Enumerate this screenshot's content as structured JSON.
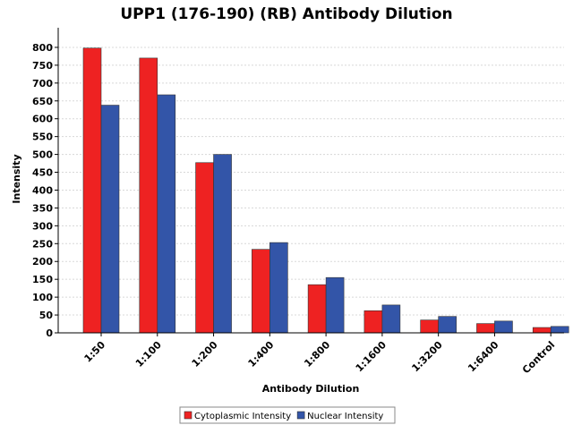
{
  "chart_data": {
    "type": "bar",
    "title": "UPP1 (176-190) (RB) Antibody Dilution",
    "xlabel": "Antibody Dilution",
    "ylabel": "Intensity",
    "categories": [
      "1:50",
      "1:100",
      "1:200",
      "1:400",
      "1:800",
      "1:1600",
      "1:3200",
      "1:6400",
      "Control"
    ],
    "series": [
      {
        "name": "Cytoplasmic Intensity",
        "color": "#ee2222",
        "values": [
          798,
          770,
          477,
          234,
          135,
          62,
          36,
          26,
          15
        ]
      },
      {
        "name": "Nuclear Intensity",
        "color": "#3355a8",
        "values": [
          638,
          667,
          500,
          253,
          155,
          78,
          46,
          33,
          18
        ]
      }
    ],
    "ylim": [
      0,
      850
    ],
    "yticks": [
      0,
      50,
      100,
      150,
      200,
      250,
      300,
      350,
      400,
      450,
      500,
      550,
      600,
      650,
      700,
      750,
      800
    ],
    "grid": true,
    "legend": "bottom-center"
  }
}
